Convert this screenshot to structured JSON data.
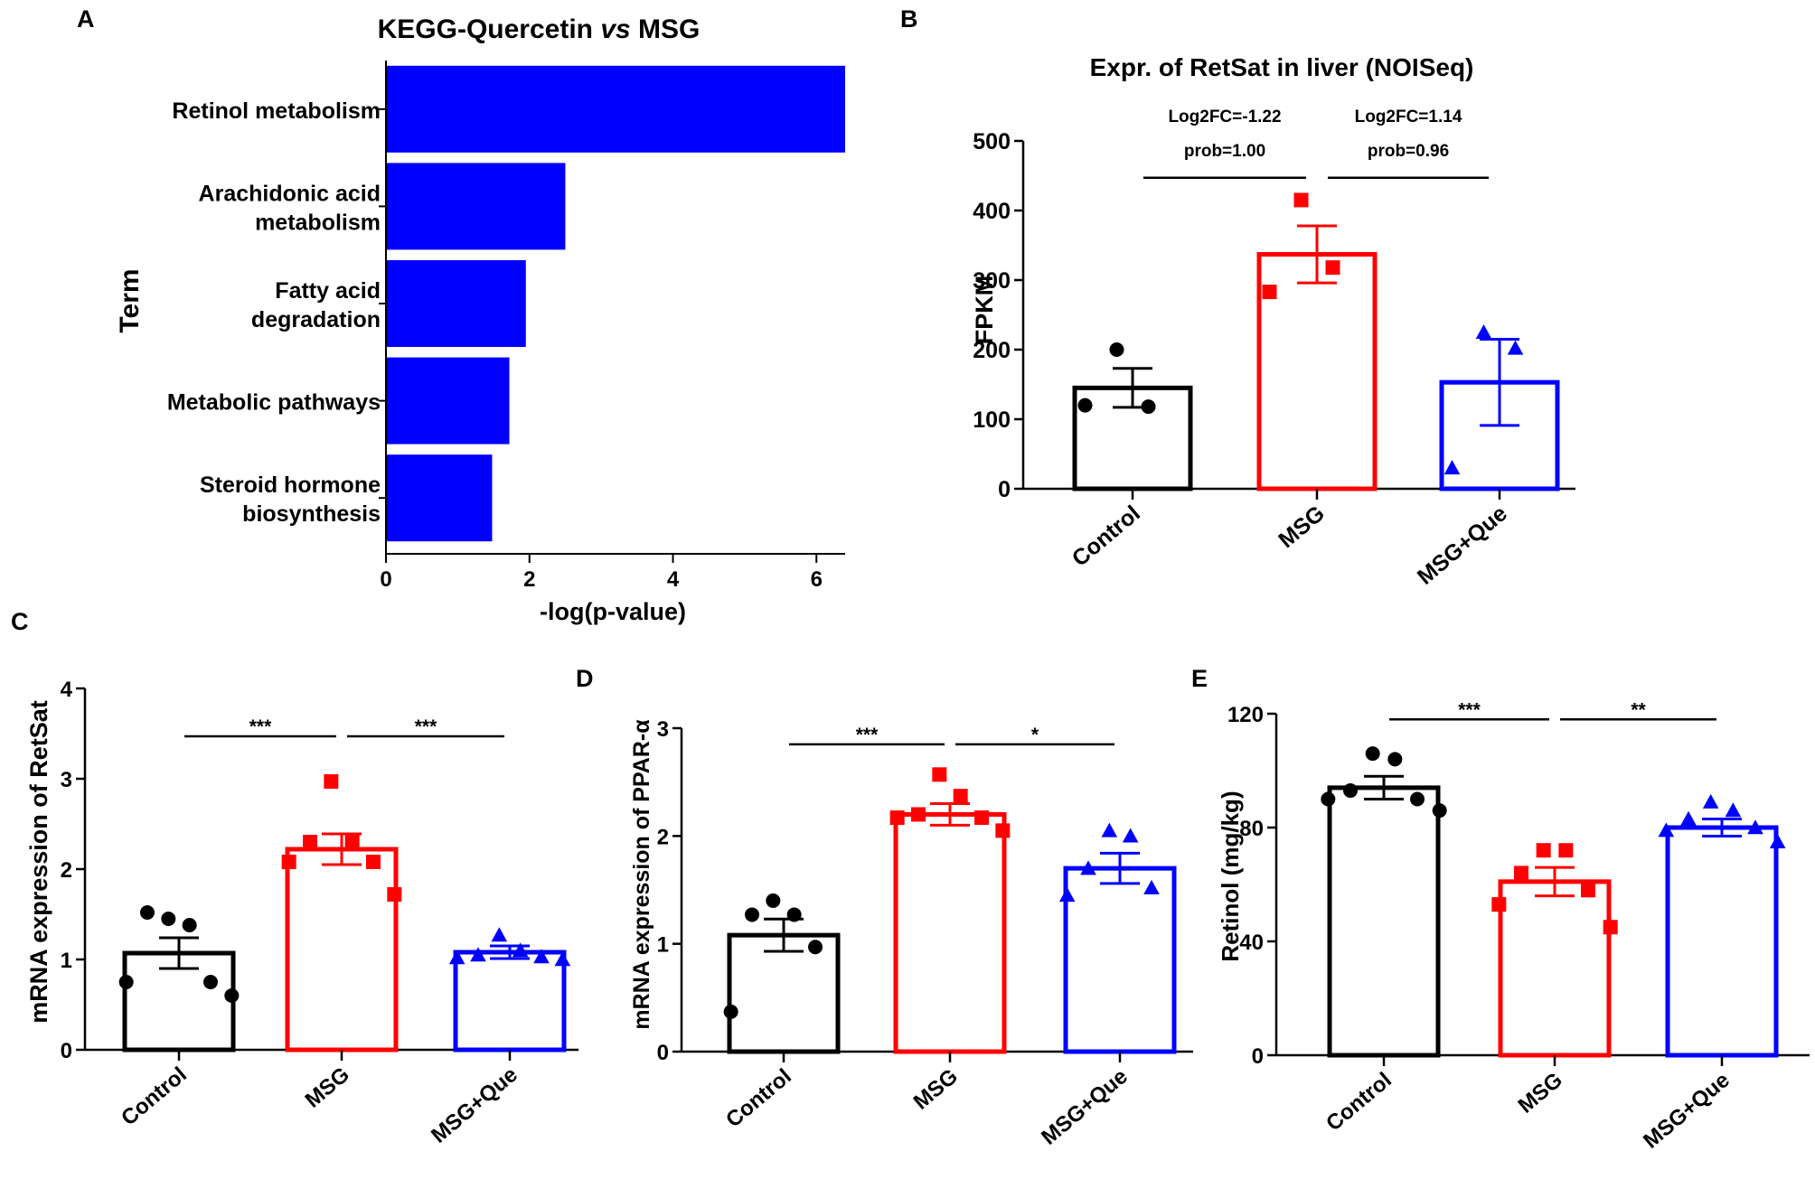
{
  "colors": {
    "control": "#000000",
    "msg": "#ff0000",
    "que": "#0000ff",
    "kegg_bar": "#0000ff"
  },
  "panels": {
    "A": {
      "letter": "A",
      "title_part1": "KEGG-Quercetin ",
      "title_italic": "vs",
      "title_part2": " MSG",
      "ylabel": "Term",
      "xlabel": "-log(p-value)"
    },
    "B": {
      "letter": "B",
      "title": "Expr. of RetSat in liver (NOISeq)",
      "ylabel": "FPKM"
    },
    "C": {
      "letter": "C",
      "ylabel": "mRNA expression of RetSat"
    },
    "D": {
      "letter": "D",
      "ylabel": "mRNA expression of PPAR-α"
    },
    "E": {
      "letter": "E",
      "ylabel": "Retinol (mg/kg)"
    }
  },
  "chart_data": [
    {
      "panel": "A",
      "type": "bar",
      "orientation": "horizontal",
      "title": "KEGG-Quercetin vs MSG",
      "xlabel": "-log(p-value)",
      "ylabel": "Term",
      "categories": [
        [
          "Retinol metabolism"
        ],
        [
          "Arachidonic acid",
          "metabolism"
        ],
        [
          "Fatty acid",
          "degradation"
        ],
        [
          "Metabolic pathways"
        ],
        [
          "Steroid hormone",
          "biosynthesis"
        ]
      ],
      "values": [
        6.4,
        2.5,
        1.95,
        1.72,
        1.48
      ],
      "xlim": [
        0,
        6.4
      ],
      "xticks": [
        0,
        2,
        4,
        6
      ],
      "color": "#0000ff"
    },
    {
      "panel": "B",
      "type": "bar",
      "title": "Expr. of RetSat in liver (NOISeq)",
      "ylabel": "FPKM",
      "xlabel": "",
      "ylim": [
        0,
        500
      ],
      "yticks": [
        0,
        100,
        200,
        300,
        400,
        500
      ],
      "groups": [
        {
          "name": "Control",
          "mean": 145,
          "sem": 28,
          "color": "#000000",
          "marker": "circle",
          "points": [
            200,
            118,
            120
          ]
        },
        {
          "name": "MSG",
          "mean": 337,
          "sem": 41,
          "color": "#ff0000",
          "marker": "square",
          "points": [
            415,
            318,
            283
          ]
        },
        {
          "name": "MSG+Que",
          "mean": 153,
          "sem": 62,
          "color": "#0000ff",
          "marker": "triangle",
          "points": [
            225,
            202,
            30
          ]
        }
      ],
      "comparisons": [
        {
          "from": 0,
          "to": 1,
          "y": 447,
          "labels": [
            "Log2FC=-1.22",
            "prob=1.00"
          ]
        },
        {
          "from": 1,
          "to": 2,
          "y": 447,
          "labels": [
            "Log2FC=1.14",
            "prob=0.96"
          ]
        }
      ]
    },
    {
      "panel": "C",
      "type": "bar",
      "ylabel": "mRNA expression of RetSat",
      "xlabel": "",
      "ylim": [
        0,
        4
      ],
      "yticks": [
        0,
        1,
        2,
        3,
        4
      ],
      "groups": [
        {
          "name": "Control",
          "mean": 1.07,
          "sem": 0.17,
          "color": "#000000",
          "marker": "circle",
          "points": [
            1.45,
            1.38,
            1.52,
            0.75,
            0.75,
            0.6
          ]
        },
        {
          "name": "MSG",
          "mean": 2.22,
          "sem": 0.17,
          "color": "#ff0000",
          "marker": "square",
          "points": [
            2.97,
            2.3,
            2.3,
            2.08,
            2.08,
            1.72
          ]
        },
        {
          "name": "MSG+Que",
          "mean": 1.08,
          "sem": 0.07,
          "color": "#0000ff",
          "marker": "triangle",
          "points": [
            1.27,
            1.1,
            1.05,
            1.03,
            1.02,
            1.0
          ]
        }
      ],
      "comparisons": [
        {
          "from": 0,
          "to": 1,
          "y": 3.47,
          "label": "***"
        },
        {
          "from": 1,
          "to": 2,
          "y": 3.47,
          "label": "***"
        }
      ]
    },
    {
      "panel": "D",
      "type": "bar",
      "ylabel": "mRNA expression of PPAR-α",
      "xlabel": "",
      "ylim": [
        0,
        3
      ],
      "yticks": [
        0,
        1,
        2,
        3
      ],
      "groups": [
        {
          "name": "Control",
          "mean": 1.08,
          "sem": 0.15,
          "color": "#000000",
          "marker": "circle",
          "points": [
            1.4,
            1.27,
            1.27,
            0.97,
            0.37
          ]
        },
        {
          "name": "MSG",
          "mean": 2.2,
          "sem": 0.1,
          "color": "#ff0000",
          "marker": "square",
          "points": [
            2.57,
            2.37,
            2.2,
            2.17,
            2.17,
            2.05
          ]
        },
        {
          "name": "MSG+Que",
          "mean": 1.7,
          "sem": 0.14,
          "color": "#0000ff",
          "marker": "triangle",
          "points": [
            2.05,
            2.0,
            1.7,
            1.52,
            1.45
          ]
        }
      ],
      "comparisons": [
        {
          "from": 0,
          "to": 1,
          "y": 2.85,
          "label": "***"
        },
        {
          "from": 1,
          "to": 2,
          "y": 2.85,
          "label": "*"
        }
      ]
    },
    {
      "panel": "E",
      "type": "bar",
      "ylabel": "Retinol (mg/kg)",
      "xlabel": "",
      "ylim": [
        0,
        120
      ],
      "yticks": [
        0,
        40,
        80,
        120
      ],
      "groups": [
        {
          "name": "Control",
          "mean": 94,
          "sem": 4,
          "color": "#000000",
          "marker": "circle",
          "points": [
            106,
            104,
            93,
            90,
            90,
            86
          ]
        },
        {
          "name": "MSG",
          "mean": 61,
          "sem": 5,
          "color": "#ff0000",
          "marker": "square",
          "points": [
            72,
            72,
            64,
            58,
            53,
            45
          ]
        },
        {
          "name": "MSG+Que",
          "mean": 80,
          "sem": 3,
          "color": "#0000ff",
          "marker": "triangle",
          "points": [
            89,
            86,
            83,
            80,
            79,
            75
          ]
        }
      ],
      "comparisons": [
        {
          "from": 0,
          "to": 1,
          "y": 118,
          "label": "***"
        },
        {
          "from": 1,
          "to": 2,
          "y": 118,
          "label": "**"
        }
      ]
    }
  ]
}
